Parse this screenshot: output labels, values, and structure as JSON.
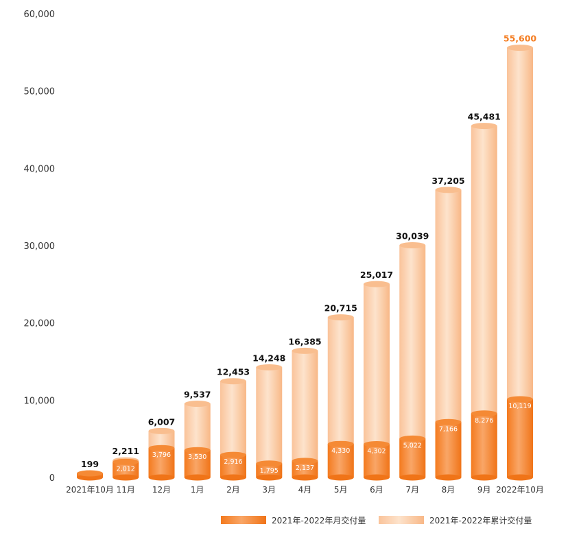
{
  "chart_data": {
    "type": "bar",
    "categories": [
      "2021年10月",
      "11月",
      "12月",
      "1月",
      "2月",
      "3月",
      "4月",
      "5月",
      "6月",
      "7月",
      "8月",
      "9月",
      "2022年10月"
    ],
    "series": [
      {
        "name": "2021年-2022年月交付量",
        "values": [
          199,
          2012,
          3796,
          3530,
          2916,
          1795,
          2137,
          4330,
          4302,
          5022,
          7166,
          8276,
          10119
        ],
        "labels": [
          "",
          "2,012",
          "3,796",
          "3,530",
          "2,916",
          "1,795",
          "2,137",
          "4,330",
          "4,302",
          "5,022",
          "7,166",
          "8,276",
          "10,119"
        ],
        "color": "#F47C20"
      },
      {
        "name": "2021年-2022年累计交付量",
        "values": [
          199,
          2211,
          6007,
          9537,
          12453,
          14248,
          16385,
          20715,
          25017,
          30039,
          37205,
          45481,
          55600
        ],
        "labels": [
          "199",
          "2,211",
          "6,007",
          "9,537",
          "12,453",
          "14,248",
          "16,385",
          "20,715",
          "25,017",
          "30,039",
          "37,205",
          "45,481",
          "55,600"
        ],
        "color": "#FAC9A0",
        "highlight_color": "#F47C20"
      }
    ],
    "y_ticks": [
      "0",
      "10,000",
      "20,000",
      "30,000",
      "40,000",
      "50,000",
      "60,000"
    ],
    "ylim": [
      0,
      60000
    ],
    "grid": false,
    "legend_position": "bottom-right"
  }
}
